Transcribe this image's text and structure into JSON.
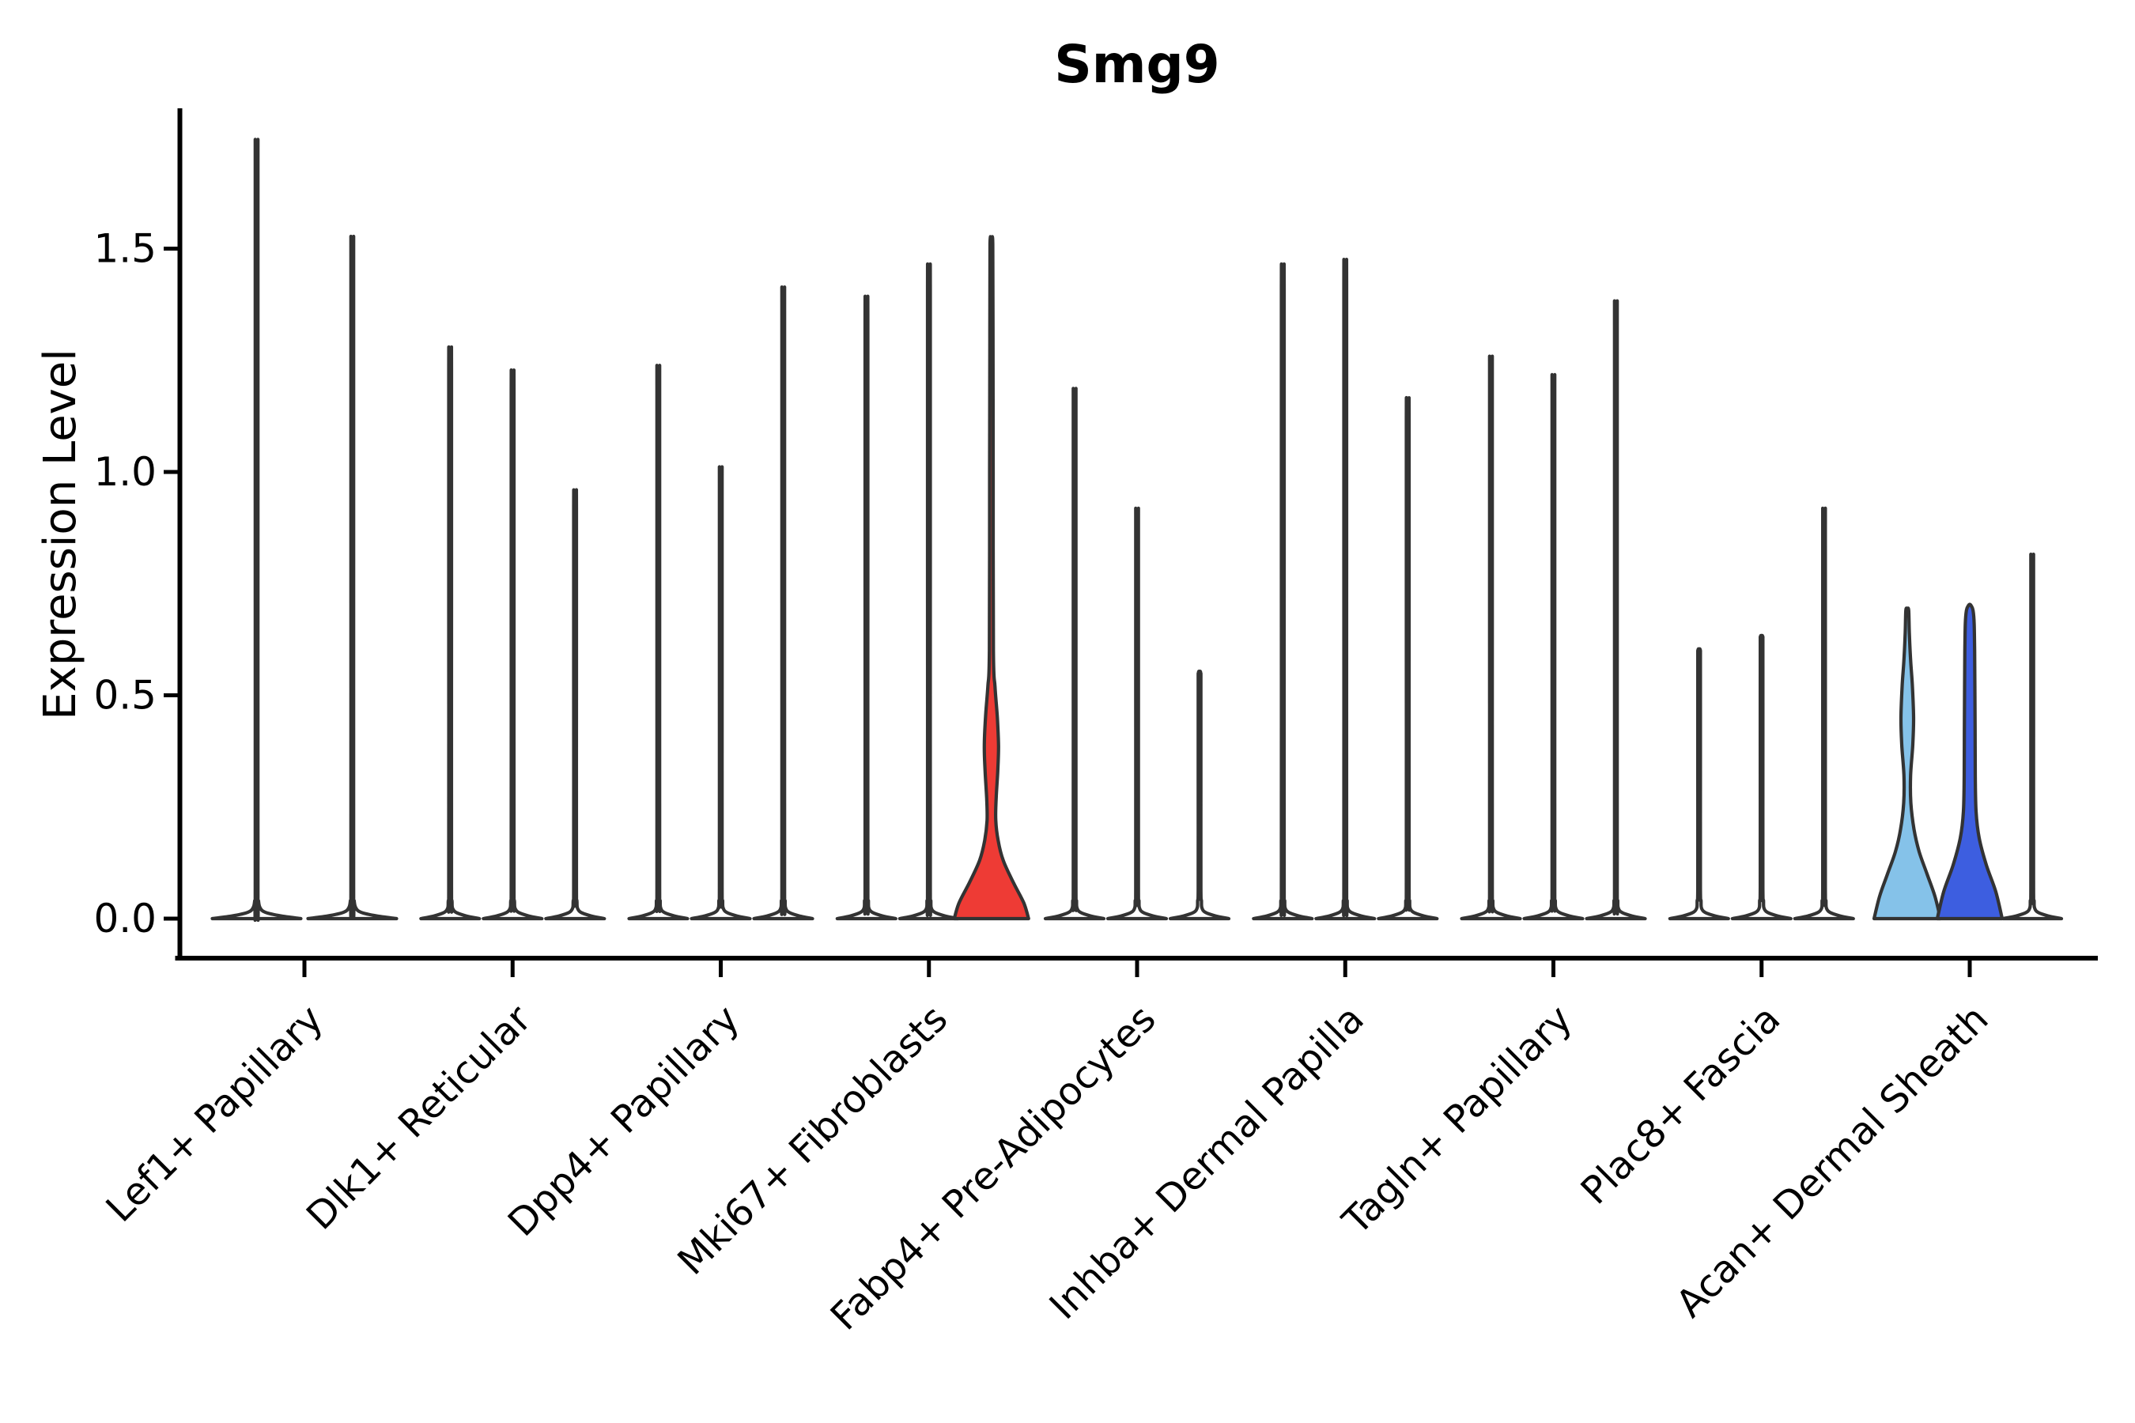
{
  "title": "Smg9",
  "y_axis": {
    "label": "Expression Level",
    "ticks": [
      "0.0",
      "0.5",
      "1.0",
      "1.5"
    ],
    "values": [
      0.0,
      0.5,
      1.0,
      1.5
    ]
  },
  "colors": {
    "outline": "#333333",
    "axis": "#000000",
    "text": "#000000",
    "background": "#ffffff",
    "white": "#ffffff",
    "red": "#ee3b35",
    "light_blue": "#85c2e9",
    "dark_blue": "#3d5ee0"
  },
  "chart_data": {
    "type": "violin",
    "title": "Smg9",
    "xlabel": "",
    "ylabel": "Expression Level",
    "ylim": [
      -0.09,
      1.81
    ],
    "yticks": [
      0.0,
      0.5,
      1.0,
      1.5
    ],
    "grid": false,
    "legend": "none",
    "x_tick_rotation": 45,
    "categories": [
      "Lef1+ Papillary",
      "Dlk1+ Reticular",
      "Dpp4+ Papillary",
      "Mki67+ Fibroblasts",
      "Fabp4+ Pre-Adipocytes",
      "Inhba+ Dermal Papilla",
      "Tagln+ Papillary",
      "Plac8+ Fascia",
      "Acan+ Dermal Sheath"
    ],
    "groups": [
      {
        "category": "Lef1+ Papillary",
        "violins": [
          {
            "max": 1.71,
            "fill": "white"
          },
          {
            "max": 1.5,
            "fill": "white"
          }
        ]
      },
      {
        "category": "Dlk1+ Reticular",
        "violins": [
          {
            "max": 1.26,
            "fill": "white"
          },
          {
            "max": 1.21,
            "fill": "white"
          },
          {
            "max": 0.95,
            "fill": "white"
          }
        ]
      },
      {
        "category": "Dpp4+ Papillary",
        "violins": [
          {
            "max": 1.22,
            "fill": "white"
          },
          {
            "max": 1.0,
            "fill": "white"
          },
          {
            "max": 1.39,
            "fill": "white"
          }
        ]
      },
      {
        "category": "Mki67+ Fibroblasts",
        "violins": [
          {
            "max": 1.37,
            "fill": "white"
          },
          {
            "max": 1.44,
            "fill": "white"
          },
          {
            "max": 1.51,
            "fill": "red",
            "profile": [
              [
                0,
                47
              ],
              [
                0.035,
                41
              ],
              [
                0.08,
                28
              ],
              [
                0.13,
                15
              ],
              [
                0.175,
                8.5
              ],
              [
                0.22,
                5.5
              ],
              [
                0.27,
                6
              ],
              [
                0.33,
                8
              ],
              [
                0.385,
                9
              ],
              [
                0.45,
                7.5
              ],
              [
                0.52,
                4.5
              ],
              [
                0.6,
                2.6
              ],
              [
                1.0,
                2.2
              ],
              [
                1.3,
                2.0
              ],
              [
                1.51,
                1.8
              ]
            ]
          }
        ]
      },
      {
        "category": "Fabp4+ Pre-Adipocytes",
        "violins": [
          {
            "max": 1.17,
            "fill": "white"
          },
          {
            "max": 0.91,
            "fill": "white"
          },
          {
            "max": 0.55,
            "fill": "white"
          }
        ]
      },
      {
        "category": "Inhba+ Dermal Papilla",
        "violins": [
          {
            "max": 1.44,
            "fill": "white"
          },
          {
            "max": 1.45,
            "fill": "white"
          },
          {
            "max": 1.15,
            "fill": "white"
          }
        ]
      },
      {
        "category": "Tagln+ Papillary",
        "violins": [
          {
            "max": 1.24,
            "fill": "white"
          },
          {
            "max": 1.2,
            "fill": "white"
          },
          {
            "max": 1.36,
            "fill": "white"
          }
        ]
      },
      {
        "category": "Plac8+ Fascia",
        "violins": [
          {
            "max": 0.6,
            "fill": "white"
          },
          {
            "max": 0.63,
            "fill": "white"
          },
          {
            "max": 0.91,
            "fill": "white"
          }
        ]
      },
      {
        "category": "Acan+ Dermal Sheath",
        "violins": [
          {
            "max": 0.69,
            "fill": "light_blue",
            "profile": [
              [
                0,
                42
              ],
              [
                0.05,
                35
              ],
              [
                0.1,
                25
              ],
              [
                0.15,
                15
              ],
              [
                0.2,
                8.5
              ],
              [
                0.26,
                4.5
              ],
              [
                0.32,
                4.2
              ],
              [
                0.39,
                7
              ],
              [
                0.45,
                8
              ],
              [
                0.52,
                6.5
              ],
              [
                0.58,
                4.2
              ],
              [
                0.64,
                2.6
              ],
              [
                0.69,
                1.8
              ]
            ]
          },
          {
            "max": 0.7,
            "fill": "dark_blue",
            "profile": [
              [
                0,
                41
              ],
              [
                0.06,
                33
              ],
              [
                0.12,
                21
              ],
              [
                0.18,
                12
              ],
              [
                0.24,
                8
              ],
              [
                0.32,
                7
              ],
              [
                0.42,
                6.8
              ],
              [
                0.52,
                6.5
              ],
              [
                0.6,
                6.2
              ],
              [
                0.66,
                5.6
              ],
              [
                0.69,
                4.2
              ],
              [
                0.7,
                2.0
              ]
            ]
          },
          {
            "max": 0.81,
            "fill": "white"
          }
        ]
      }
    ]
  }
}
